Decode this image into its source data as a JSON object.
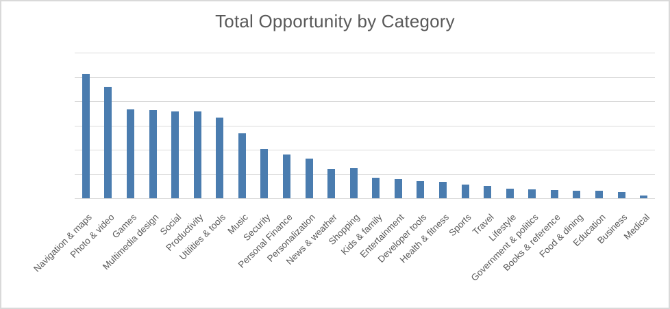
{
  "window": {
    "background_color": "#FFFFFF",
    "border_color": "#D9D9D9"
  },
  "chart_data": {
    "type": "bar",
    "title": "Total Opportunity by Category",
    "xlabel": "",
    "ylabel": "",
    "categories": [
      "Navigation & maps",
      "Photo & video",
      "Games",
      "Multimedia design",
      "Social",
      "Productivity",
      "Utilities & tools",
      "Music",
      "Security",
      "Personal Finance",
      "Personalization",
      "News & weather",
      "Shopping",
      "Kids & family",
      "Entertainment",
      "Developer tools",
      "Health & fitness",
      "Sports",
      "Travel",
      "Lifestyle",
      "Government & politics",
      "Books & reference",
      "Food & dining",
      "Education",
      "Business",
      "Medical"
    ],
    "values": [
      5.12,
      4.58,
      3.67,
      3.63,
      3.59,
      3.59,
      3.33,
      2.69,
      2.04,
      1.81,
      1.64,
      1.2,
      1.23,
      0.85,
      0.79,
      0.71,
      0.69,
      0.55,
      0.51,
      0.39,
      0.37,
      0.35,
      0.32,
      0.3,
      0.24,
      0.12
    ],
    "ylim": [
      0,
      6
    ],
    "gridline_interval": 1,
    "y_tick_labels_visible": false,
    "grid": "horizontal",
    "legend": "none",
    "bar_color": "#4A7CAF",
    "gridline_color": "#D9D9D9",
    "axis_line_color": "#D9D9D9",
    "text_color": "#595959",
    "x_label_rotation_deg": 45
  }
}
